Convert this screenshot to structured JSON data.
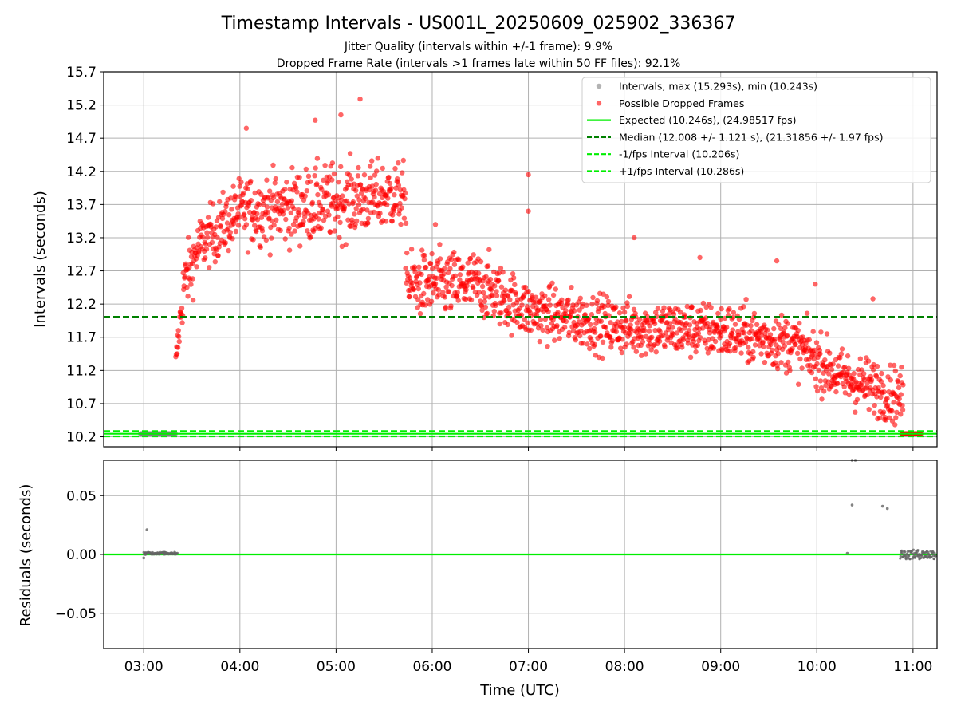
{
  "chart_data": {
    "type": "scatter",
    "title": "Timestamp Intervals - US001L_20250609_025902_336367",
    "subtitles": [
      "Jitter Quality (intervals within +/-1 frame): 9.9%",
      "Dropped Frame Rate (intervals >1 frames late within 50 FF files): 92.1%"
    ],
    "top": {
      "ylabel": "Intervals (seconds)",
      "ylim": [
        10.05,
        15.7
      ],
      "yticks": [
        "10.2",
        "10.7",
        "11.2",
        "11.7",
        "12.2",
        "12.7",
        "13.2",
        "13.7",
        "14.2",
        "14.7",
        "15.2",
        "15.7"
      ],
      "grid": true,
      "legend_position": "top-right",
      "legend": [
        {
          "label": "Intervals, max (15.293s), min (10.243s)",
          "kind": "dot",
          "color": "#808080"
        },
        {
          "label": "Possible Dropped Frames",
          "kind": "dot",
          "color": "#ff0000"
        },
        {
          "label": "Expected (10.246s), (24.98517 fps)",
          "kind": "line",
          "color": "#00ee00"
        },
        {
          "label": "Median (12.008 +/- 1.121 s), (21.31856 +/- 1.97 fps)",
          "kind": "dash",
          "color": "#008000"
        },
        {
          "label": "-1/fps Interval (10.206s)",
          "kind": "dash",
          "color": "#00ee00"
        },
        {
          "label": "+1/fps Interval (10.286s)",
          "kind": "dash",
          "color": "#00ee00"
        }
      ],
      "reference_lines": {
        "expected": 10.246,
        "median": 12.008,
        "minus_one": 10.206,
        "plus_one": 10.286
      },
      "trend_profile": [
        {
          "t": "03:20",
          "mean": 11.3,
          "spread": 0.15
        },
        {
          "t": "03:25",
          "mean": 12.5,
          "spread": 0.35
        },
        {
          "t": "03:35",
          "mean": 13.1,
          "spread": 0.3
        },
        {
          "t": "04:00",
          "mean": 13.6,
          "spread": 0.35
        },
        {
          "t": "04:30",
          "mean": 13.65,
          "spread": 0.4
        },
        {
          "t": "05:00",
          "mean": 13.75,
          "spread": 0.4
        },
        {
          "t": "05:42",
          "mean": 13.85,
          "spread": 0.35
        },
        {
          "t": "05:45",
          "mean": 12.5,
          "spread": 0.35
        },
        {
          "t": "06:30",
          "mean": 12.5,
          "spread": 0.35
        },
        {
          "t": "07:00",
          "mean": 12.1,
          "spread": 0.3
        },
        {
          "t": "08:00",
          "mean": 11.85,
          "spread": 0.3
        },
        {
          "t": "09:00",
          "mean": 11.8,
          "spread": 0.3
        },
        {
          "t": "09:45",
          "mean": 11.6,
          "spread": 0.3
        },
        {
          "t": "10:15",
          "mean": 11.1,
          "spread": 0.3
        },
        {
          "t": "10:54",
          "mean": 10.8,
          "spread": 0.3
        }
      ],
      "outliers": [
        {
          "t": "05:15",
          "y": 15.29
        },
        {
          "t": "05:03",
          "y": 15.05
        },
        {
          "t": "04:04",
          "y": 14.85
        },
        {
          "t": "04:47",
          "y": 14.97
        },
        {
          "t": "07:00",
          "y": 14.15
        },
        {
          "t": "07:00",
          "y": 13.6
        },
        {
          "t": "06:02",
          "y": 13.4
        },
        {
          "t": "08:06",
          "y": 13.2
        },
        {
          "t": "09:35",
          "y": 12.85
        },
        {
          "t": "08:47",
          "y": 12.9
        },
        {
          "t": "10:35",
          "y": 12.28
        },
        {
          "t": "09:59",
          "y": 12.5
        }
      ],
      "flat_segments": [
        {
          "from": "02:58",
          "to": "03:20",
          "y": 10.246
        },
        {
          "from": "10:53",
          "to": "11:05",
          "y": 10.246
        }
      ]
    },
    "bottom": {
      "ylabel": "Residuals (seconds)",
      "xlabel": "Time (UTC)",
      "ylim": [
        -0.08,
        0.08
      ],
      "yticks": [
        {
          "label": "0.05",
          "value": 0.05
        },
        {
          "label": "0.00",
          "value": 0.0
        },
        {
          "label": "−0.05",
          "value": -0.05
        }
      ],
      "grid": true,
      "expected_line": 0.0,
      "points": [
        {
          "t": "03:00",
          "y": -0.003
        },
        {
          "t": "03:01",
          "y": 0.0
        },
        {
          "t": "03:02",
          "y": 0.021
        },
        {
          "t": "10:19",
          "y": 0.001
        },
        {
          "t": "10:22",
          "y": 0.08
        },
        {
          "t": "10:24",
          "y": 0.08
        },
        {
          "t": "10:22",
          "y": 0.042
        },
        {
          "t": "10:41",
          "y": 0.041
        },
        {
          "t": "10:44",
          "y": 0.039
        }
      ],
      "clusters": [
        {
          "from": "03:00",
          "to": "03:21",
          "y_min": 0.0,
          "y_max": 0.002
        },
        {
          "from": "10:52",
          "to": "11:14",
          "y_min": -0.004,
          "y_max": 0.004
        }
      ]
    },
    "x": {
      "range": [
        "02:35",
        "11:15"
      ],
      "ticks": [
        "03:00",
        "04:00",
        "05:00",
        "06:00",
        "07:00",
        "08:00",
        "09:00",
        "10:00",
        "11:00"
      ]
    }
  }
}
